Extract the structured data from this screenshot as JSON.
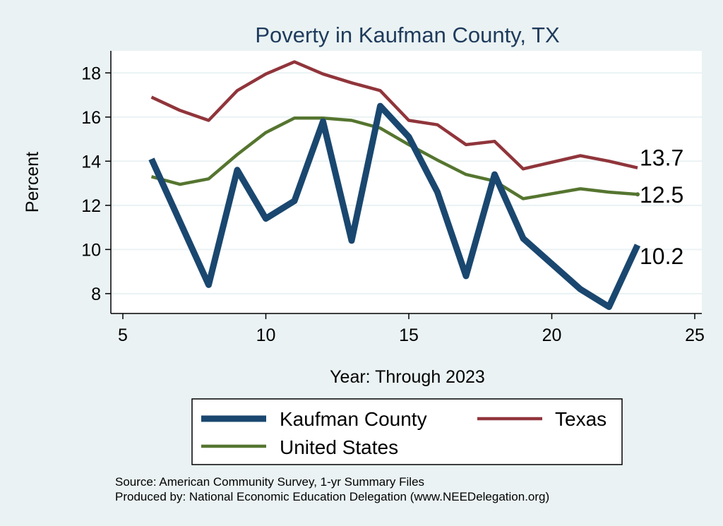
{
  "chart_data": {
    "type": "line",
    "title": "Poverty in Kaufman County, TX",
    "xlabel": "Year: Through 2023",
    "ylabel": "Percent",
    "xlim": [
      5,
      25
    ],
    "ylim": [
      7.1,
      19
    ],
    "xticks": [
      5,
      10,
      15,
      20,
      25
    ],
    "yticks": [
      8,
      10,
      12,
      14,
      16,
      18
    ],
    "grid": true,
    "legend_position": "bottom",
    "series": [
      {
        "name": "Kaufman County",
        "color": "#1a476f",
        "x": [
          6,
          8,
          9,
          10,
          11,
          12,
          13,
          14,
          15,
          16,
          17,
          18,
          19,
          21,
          22,
          23
        ],
        "y": [
          14.1,
          8.4,
          13.6,
          11.4,
          12.2,
          15.8,
          10.4,
          16.5,
          15.1,
          12.6,
          8.8,
          13.4,
          10.5,
          8.2,
          7.4,
          10.2
        ]
      },
      {
        "name": "Texas",
        "color": "#90353b",
        "x": [
          6,
          7,
          8,
          9,
          10,
          11,
          12,
          13,
          14,
          15,
          16,
          17,
          18,
          19,
          21,
          22,
          23
        ],
        "y": [
          16.9,
          16.3,
          15.85,
          17.2,
          17.95,
          18.5,
          17.95,
          17.55,
          17.2,
          15.85,
          15.65,
          14.75,
          14.9,
          13.65,
          14.25,
          14.0,
          13.7
        ]
      },
      {
        "name": "United States",
        "color": "#55752f",
        "x": [
          6,
          7,
          8,
          9,
          10,
          11,
          12,
          13,
          14,
          15,
          16,
          17,
          18,
          19,
          21,
          22,
          23
        ],
        "y": [
          13.3,
          12.95,
          13.2,
          14.3,
          15.3,
          15.95,
          15.95,
          15.85,
          15.5,
          14.75,
          14.05,
          13.4,
          13.1,
          12.3,
          12.75,
          12.6,
          12.5
        ]
      }
    ],
    "end_labels": [
      {
        "series": "Texas",
        "text": "13.7"
      },
      {
        "series": "United States",
        "text": "12.5"
      },
      {
        "series": "Kaufman County",
        "text": "10.2"
      }
    ],
    "source_lines": [
      "Source: American Community Survey, 1-yr Summary Files",
      "Produced by: National Economic Education Delegation (www.NEEDelegation.org)"
    ]
  }
}
